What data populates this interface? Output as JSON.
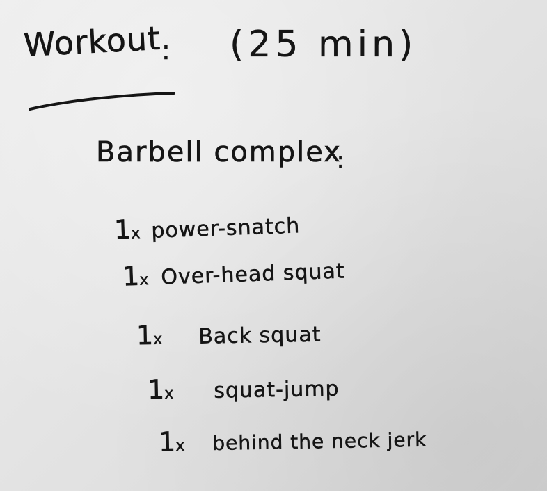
{
  "note": {
    "title": "Workout",
    "title_colon": ":",
    "duration": "(25 min)",
    "heading": "Barbell complex",
    "heading_colon": ":",
    "items": [
      {
        "qty": "1",
        "x": "x",
        "exercise": "power-snatch"
      },
      {
        "qty": "1",
        "x": "x",
        "exercise": "Over-head squat"
      },
      {
        "qty": "1",
        "x": "x",
        "exercise": "Back squat"
      },
      {
        "qty": "1",
        "x": "x",
        "exercise": "squat-jump"
      },
      {
        "qty": "1",
        "x": "x",
        "exercise": "behind the neck jerk"
      }
    ]
  },
  "colors": {
    "paper": "#e6e6e6",
    "ink": "#151515"
  }
}
